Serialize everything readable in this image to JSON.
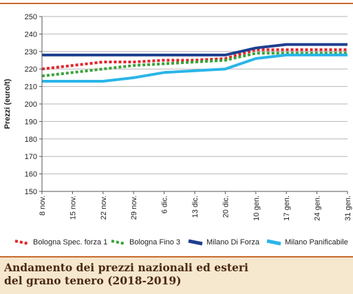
{
  "chart_data": {
    "type": "line",
    "title": "Andamento dei prezzi nazionali ed esteri\ndel grano tenero (2018-2019)",
    "xlabel": "",
    "ylabel": "Prezzi (euro/t)",
    "ylim": [
      150,
      250
    ],
    "yticks": [
      150,
      160,
      170,
      180,
      190,
      200,
      210,
      220,
      230,
      240,
      250
    ],
    "categories": [
      "8 nov.",
      "15 nov.",
      "22 nov.",
      "29 nov.",
      "6 dic.",
      "13 dic.",
      "20 dic.",
      "10 gen.",
      "17 gen.",
      "24 gen.",
      "31 gen."
    ],
    "grid": true,
    "legend_position": "bottom",
    "series": [
      {
        "name": "Bologna Spec. forza 1",
        "color": "#e3242b",
        "style": "dotted",
        "values": [
          220,
          222,
          224,
          224,
          225,
          225,
          226,
          231,
          231,
          231,
          231
        ]
      },
      {
        "name": "Bologna Fino 3",
        "color": "#3aa339",
        "style": "dotted",
        "values": [
          216,
          218,
          220,
          222,
          223,
          224,
          225,
          229,
          229,
          229,
          229
        ]
      },
      {
        "name": "Milano Di Forza",
        "color": "#1d3f8f",
        "style": "solid",
        "values": [
          228,
          228,
          228,
          228,
          228,
          228,
          228,
          232,
          234,
          234,
          234
        ]
      },
      {
        "name": "Milano Panificabile",
        "color": "#2bb5e8",
        "style": "solid",
        "values": [
          213,
          213,
          213,
          215,
          218,
          219,
          220,
          226,
          228,
          228,
          228
        ]
      }
    ]
  }
}
